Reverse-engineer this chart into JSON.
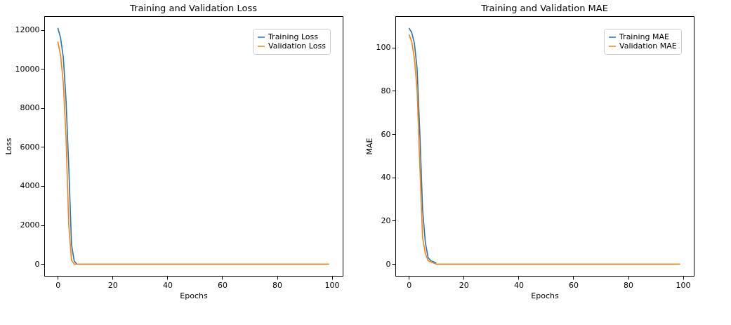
{
  "chart_data": [
    {
      "type": "line",
      "title": "Training and Validation Loss",
      "xlabel": "Epochs",
      "ylabel": "Loss",
      "xlim": [
        -4.95,
        103.95
      ],
      "ylim": [
        -605,
        12705
      ],
      "xticks": [
        0,
        20,
        40,
        60,
        80,
        100
      ],
      "yticks": [
        0,
        2000,
        4000,
        6000,
        8000,
        10000,
        12000
      ],
      "grid": false,
      "legend": "top right",
      "marker": "none",
      "line_style": "solid",
      "series": [
        {
          "name": "Training Loss",
          "color": "#1f77b4",
          "x": [
            0,
            1,
            2,
            3,
            4,
            5,
            6,
            7
          ],
          "values": [
            12100,
            11600,
            10600,
            8400,
            5000,
            1000,
            150,
            0
          ]
        },
        {
          "name": "Validation Loss",
          "color": "#ff7f0e",
          "x": [
            0,
            1,
            2,
            3,
            4,
            5,
            6,
            7,
            8,
            9,
            10,
            12,
            20,
            30,
            40,
            50,
            60,
            70,
            80,
            90,
            99
          ],
          "values": [
            11400,
            10700,
            9300,
            6500,
            2000,
            200,
            0,
            0,
            0,
            0,
            0,
            0,
            0,
            0,
            0,
            0,
            0,
            0,
            0,
            0,
            0
          ]
        }
      ]
    },
    {
      "type": "line",
      "title": "Training and Validation MAE",
      "xlabel": "Epochs",
      "ylabel": "MAE",
      "xlim": [
        -4.95,
        103.95
      ],
      "ylim": [
        -5.45,
        114.45
      ],
      "xticks": [
        0,
        20,
        40,
        60,
        80,
        100
      ],
      "yticks": [
        0,
        20,
        40,
        60,
        80,
        100
      ],
      "grid": false,
      "legend": "top right",
      "marker": "none",
      "line_style": "solid",
      "series": [
        {
          "name": "Training MAE",
          "color": "#1f77b4",
          "x": [
            0,
            1,
            2,
            3,
            4,
            5,
            6,
            7,
            8,
            9,
            10
          ],
          "values": [
            109,
            107,
            102,
            90,
            60,
            25,
            10,
            3,
            1.5,
            1,
            0.5
          ]
        },
        {
          "name": "Validation MAE",
          "color": "#ff7f0e",
          "x": [
            0,
            1,
            2,
            3,
            4,
            5,
            6,
            7,
            8,
            9,
            10,
            12,
            20,
            30,
            40,
            50,
            60,
            70,
            80,
            90,
            99
          ],
          "values": [
            106,
            103,
            95,
            80,
            45,
            12,
            5,
            1.5,
            1,
            0.5,
            0,
            0,
            0,
            0,
            0,
            0,
            0,
            0,
            0,
            0,
            0
          ]
        }
      ]
    }
  ]
}
